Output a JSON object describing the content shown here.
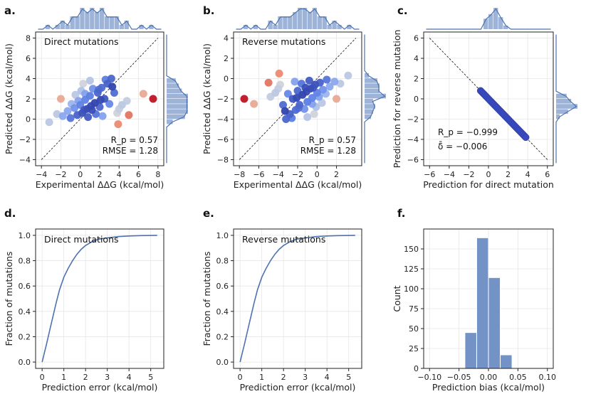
{
  "figure": {
    "panel_letters": [
      "a.",
      "b.",
      "c.",
      "d.",
      "e.",
      "f."
    ]
  },
  "chart_data": [
    {
      "id": "a",
      "type": "scatter",
      "annotation": "Direct mutations",
      "xlabel": "Experimental ΔΔG (kcal/mol)",
      "ylabel": "Predicted ΔΔG (kcal/mol)",
      "xlim": [
        -4.6,
        8.6
      ],
      "ylim": [
        -4.6,
        8.6
      ],
      "xticks": [
        -4,
        -2,
        0,
        2,
        4,
        6,
        8
      ],
      "yticks": [
        -4,
        -2,
        0,
        2,
        4,
        6,
        8
      ],
      "diagonal": "y = x",
      "stats": [
        "R_p = 0.57",
        "RMSE = 1.28"
      ],
      "points": [
        [
          -3.2,
          -0.3
        ],
        [
          -2.4,
          0.5
        ],
        [
          -1.8,
          0.3
        ],
        [
          -1.3,
          0.8
        ],
        [
          -1.0,
          0.1
        ],
        [
          -0.6,
          1.1
        ],
        [
          -0.3,
          0.4
        ],
        [
          0.0,
          1.4
        ],
        [
          0.2,
          0.6
        ],
        [
          0.5,
          1.9
        ],
        [
          0.7,
          1.0
        ],
        [
          1.0,
          2.3
        ],
        [
          1.2,
          0.9
        ],
        [
          1.5,
          1.6
        ],
        [
          1.8,
          2.6
        ],
        [
          2.0,
          1.2
        ],
        [
          2.2,
          3.1
        ],
        [
          2.5,
          2.0
        ],
        [
          0.3,
          3.5
        ],
        [
          -0.5,
          2.4
        ],
        [
          1.0,
          3.8
        ],
        [
          2.8,
          3.5
        ],
        [
          3.0,
          1.5
        ],
        [
          3.5,
          2.6
        ],
        [
          0.8,
          0.2
        ],
        [
          1.6,
          0.5
        ],
        [
          -0.2,
          1.8
        ],
        [
          2.3,
          0.3
        ],
        [
          1.9,
          2.9
        ],
        [
          0.1,
          2.8
        ],
        [
          2.6,
          3.9
        ],
        [
          3.3,
          3.2
        ],
        [
          0.5,
          2.5
        ],
        [
          1.3,
          3.0
        ],
        [
          -0.9,
          1.5
        ],
        [
          2.1,
          1.9
        ],
        [
          1.1,
          1.3
        ],
        [
          0.4,
          0.9
        ],
        [
          3.8,
          0.6
        ],
        [
          4.0,
          1.0
        ],
        [
          4.3,
          1.4
        ],
        [
          4.8,
          1.8
        ],
        [
          5.0,
          0.4
        ],
        [
          6.5,
          2.5
        ],
        [
          7.5,
          2.0
        ],
        [
          3.9,
          -0.5
        ],
        [
          -2.0,
          2.0
        ],
        [
          3.2,
          4.0
        ]
      ],
      "point_colors": "blue-to-red by |error|"
    },
    {
      "id": "b",
      "type": "scatter",
      "annotation": "Reverse mutations",
      "xlabel": "Experimental ΔΔG (kcal/mol)",
      "ylabel": "Predicted ΔΔG (kcal/mol)",
      "xlim": [
        -8.6,
        4.6
      ],
      "ylim": [
        -8.6,
        4.6
      ],
      "xticks": [
        -8,
        -6,
        -4,
        -2,
        0,
        2
      ],
      "yticks": [
        -8,
        -6,
        -4,
        -2,
        0,
        2,
        4
      ],
      "diagonal": "y = x",
      "stats": [
        "R_p = 0.57",
        "RMSE = 1.28"
      ],
      "points": [
        [
          3.2,
          0.3
        ],
        [
          2.4,
          -0.5
        ],
        [
          1.8,
          -0.3
        ],
        [
          1.3,
          -0.8
        ],
        [
          1.0,
          -0.1
        ],
        [
          0.6,
          -1.1
        ],
        [
          0.3,
          -0.4
        ],
        [
          0.0,
          -1.4
        ],
        [
          -0.2,
          -0.6
        ],
        [
          -0.5,
          -1.9
        ],
        [
          -0.7,
          -1.0
        ],
        [
          -1.0,
          -2.3
        ],
        [
          -1.2,
          -0.9
        ],
        [
          -1.5,
          -1.6
        ],
        [
          -1.8,
          -2.6
        ],
        [
          -2.0,
          -1.2
        ],
        [
          -2.2,
          -3.1
        ],
        [
          -2.5,
          -2.0
        ],
        [
          -0.3,
          -3.5
        ],
        [
          0.5,
          -2.4
        ],
        [
          -1.0,
          -3.8
        ],
        [
          -2.8,
          -3.5
        ],
        [
          -3.0,
          -1.5
        ],
        [
          -3.5,
          -2.6
        ],
        [
          -0.8,
          -0.2
        ],
        [
          -1.6,
          -0.5
        ],
        [
          0.2,
          -1.8
        ],
        [
          -2.3,
          -0.3
        ],
        [
          -1.9,
          -2.9
        ],
        [
          -0.1,
          -2.8
        ],
        [
          -2.6,
          -3.9
        ],
        [
          -3.3,
          -3.2
        ],
        [
          -0.5,
          -2.5
        ],
        [
          -1.3,
          -3.0
        ],
        [
          0.9,
          -1.5
        ],
        [
          -2.1,
          -1.9
        ],
        [
          -1.1,
          -1.3
        ],
        [
          -0.4,
          -0.9
        ],
        [
          -3.8,
          -0.6
        ],
        [
          -4.0,
          -1.0
        ],
        [
          -4.3,
          -1.4
        ],
        [
          -4.8,
          -1.8
        ],
        [
          -5.0,
          -0.4
        ],
        [
          -6.5,
          -2.5
        ],
        [
          -7.5,
          -2.0
        ],
        [
          -3.9,
          0.5
        ],
        [
          2.0,
          -2.0
        ],
        [
          -3.2,
          -4.0
        ]
      ],
      "point_colors": "blue-to-red by |error|"
    },
    {
      "id": "c",
      "type": "scatter",
      "xlabel": "Prediction for direct mutation",
      "ylabel": "Prediction for reverse mutation",
      "xlim": [
        -6.6,
        6.6
      ],
      "ylim": [
        -6.6,
        6.6
      ],
      "xticks": [
        -6,
        -4,
        -2,
        0,
        2,
        4,
        6
      ],
      "yticks": [
        -6,
        -4,
        -2,
        0,
        2,
        4,
        6
      ],
      "diagonal": "y = -x",
      "stats": [
        "R_p = −0.999",
        "δ̄ = −0.006"
      ],
      "point_range": [
        -0.8,
        3.8
      ]
    },
    {
      "id": "d",
      "type": "line",
      "annotation": "Direct mutations",
      "xlabel": "Prediction error (kcal/mol)",
      "ylabel": "Fraction of mutations",
      "xlim": [
        -0.3,
        5.6
      ],
      "ylim": [
        -0.05,
        1.05
      ],
      "xticks": [
        0,
        1,
        2,
        3,
        4,
        5
      ],
      "yticks": [
        0.0,
        0.2,
        0.4,
        0.6,
        0.8,
        1.0
      ],
      "x": [
        0.0,
        0.1,
        0.2,
        0.35,
        0.5,
        0.65,
        0.8,
        1.0,
        1.2,
        1.4,
        1.6,
        1.8,
        2.0,
        2.3,
        2.6,
        3.0,
        3.5,
        4.0,
        4.5,
        5.3
      ],
      "y": [
        0.0,
        0.07,
        0.14,
        0.25,
        0.36,
        0.47,
        0.57,
        0.67,
        0.74,
        0.8,
        0.85,
        0.89,
        0.92,
        0.95,
        0.97,
        0.98,
        0.99,
        0.995,
        0.998,
        1.0
      ]
    },
    {
      "id": "e",
      "type": "line",
      "annotation": "Reverse mutations",
      "xlabel": "Prediction error (kcal/mol)",
      "ylabel": "Fraction of mutations",
      "xlim": [
        -0.3,
        5.6
      ],
      "ylim": [
        -0.05,
        1.05
      ],
      "xticks": [
        0,
        1,
        2,
        3,
        4,
        5
      ],
      "yticks": [
        0.0,
        0.2,
        0.4,
        0.6,
        0.8,
        1.0
      ],
      "x": [
        0.0,
        0.1,
        0.2,
        0.35,
        0.5,
        0.65,
        0.8,
        1.0,
        1.2,
        1.4,
        1.6,
        1.8,
        2.0,
        2.3,
        2.6,
        3.0,
        3.5,
        4.0,
        4.5,
        5.3
      ],
      "y": [
        0.0,
        0.07,
        0.14,
        0.25,
        0.36,
        0.47,
        0.57,
        0.67,
        0.74,
        0.8,
        0.85,
        0.89,
        0.92,
        0.95,
        0.97,
        0.98,
        0.99,
        0.995,
        0.998,
        1.0
      ]
    },
    {
      "id": "f",
      "type": "bar",
      "xlabel": "Prediction bias (kcal/mol)",
      "ylabel": "Count",
      "xlim": [
        -0.11,
        0.11
      ],
      "ylim": [
        0,
        175
      ],
      "xticks": [
        -0.1,
        -0.05,
        0.0,
        0.05,
        0.1
      ],
      "xtick_labels": [
        "−0.10",
        "−0.05",
        "0.00",
        "0.05",
        "0.10"
      ],
      "yticks": [
        0,
        25,
        50,
        75,
        100,
        125,
        150
      ],
      "bin_edges": [
        -0.04,
        -0.02,
        0.0,
        0.02,
        0.04
      ],
      "counts": [
        45,
        164,
        114,
        17
      ]
    }
  ],
  "colors": {
    "line": "#4c72b0",
    "hist_fill": "#9db4d8",
    "bar_fill": "#7393c6",
    "diag": "#111111"
  }
}
